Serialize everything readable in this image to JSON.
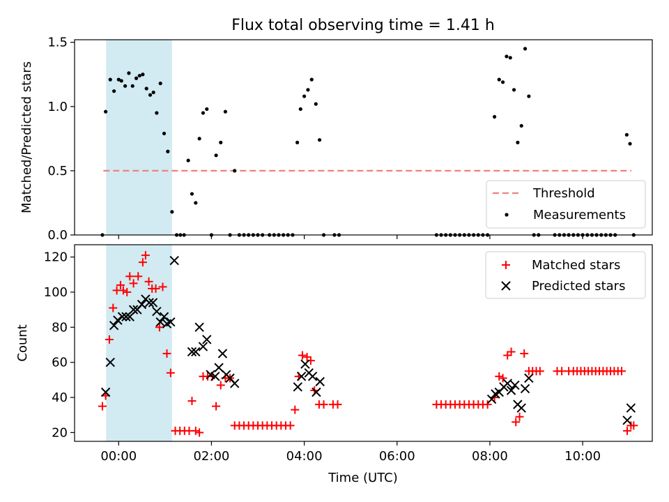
{
  "title": "Flux total observing time = 1.41 h",
  "chart_data": [
    {
      "type": "scatter",
      "ylabel": "Matched/Predicted stars",
      "xlim_hours": [
        -0.95,
        11.5
      ],
      "ylim": [
        0,
        1.52
      ],
      "yticks": [
        "0.0",
        "0.5",
        "1.0",
        "1.5"
      ],
      "highlight_span_hours": [
        -0.27,
        1.15
      ],
      "threshold": {
        "label": "Threshold",
        "value": 0.5,
        "x_range_hours": [
          -0.33,
          11.05
        ]
      },
      "legend": [
        "Threshold",
        "Measurements"
      ],
      "legend_position": "lower-right",
      "series": [
        {
          "name": "Measurements",
          "points": [
            [
              -0.35,
              0
            ],
            [
              -0.28,
              0.96
            ],
            [
              -0.18,
              1.21
            ],
            [
              -0.1,
              1.12
            ],
            [
              0,
              1.21
            ],
            [
              0.06,
              1.2
            ],
            [
              0.14,
              1.16
            ],
            [
              0.22,
              1.26
            ],
            [
              0.3,
              1.16
            ],
            [
              0.38,
              1.22
            ],
            [
              0.45,
              1.24
            ],
            [
              0.52,
              1.25
            ],
            [
              0.6,
              1.14
            ],
            [
              0.68,
              1.09
            ],
            [
              0.75,
              1.11
            ],
            [
              0.82,
              0.95
            ],
            [
              0.9,
              1.18
            ],
            [
              0.98,
              0.79
            ],
            [
              1.06,
              0.65
            ],
            [
              1.15,
              0.18
            ],
            [
              1.25,
              0
            ],
            [
              1.33,
              0
            ],
            [
              1.41,
              0
            ],
            [
              1.5,
              0.58
            ],
            [
              1.58,
              0.32
            ],
            [
              1.66,
              0.25
            ],
            [
              1.74,
              0.75
            ],
            [
              1.82,
              0.95
            ],
            [
              1.9,
              0.98
            ],
            [
              2.0,
              0
            ],
            [
              2.1,
              0.62
            ],
            [
              2.2,
              0.72
            ],
            [
              2.3,
              0.96
            ],
            [
              2.4,
              0
            ],
            [
              2.5,
              0.5
            ],
            [
              2.6,
              0
            ],
            [
              2.7,
              0
            ],
            [
              2.8,
              0
            ],
            [
              2.9,
              0
            ],
            [
              3.0,
              0
            ],
            [
              3.1,
              0
            ],
            [
              3.25,
              0
            ],
            [
              3.35,
              0
            ],
            [
              3.45,
              0
            ],
            [
              3.55,
              0
            ],
            [
              3.65,
              0
            ],
            [
              3.75,
              0
            ],
            [
              3.85,
              0.72
            ],
            [
              3.92,
              0.98
            ],
            [
              4.0,
              1.08
            ],
            [
              4.08,
              1.13
            ],
            [
              4.16,
              1.21
            ],
            [
              4.25,
              1.02
            ],
            [
              4.33,
              0.74
            ],
            [
              4.42,
              0
            ],
            [
              4.65,
              0
            ],
            [
              4.75,
              0
            ],
            [
              6.85,
              0
            ],
            [
              6.95,
              0
            ],
            [
              7.05,
              0
            ],
            [
              7.15,
              0
            ],
            [
              7.25,
              0
            ],
            [
              7.35,
              0
            ],
            [
              7.45,
              0
            ],
            [
              7.55,
              0
            ],
            [
              7.65,
              0
            ],
            [
              7.75,
              0
            ],
            [
              7.85,
              0
            ],
            [
              7.95,
              0
            ],
            [
              8.1,
              0.92
            ],
            [
              8.2,
              1.21
            ],
            [
              8.28,
              1.19
            ],
            [
              8.36,
              1.39
            ],
            [
              8.44,
              1.38
            ],
            [
              8.52,
              1.13
            ],
            [
              8.6,
              0.72
            ],
            [
              8.68,
              0.85
            ],
            [
              8.76,
              1.45
            ],
            [
              8.84,
              1.08
            ],
            [
              8.95,
              0
            ],
            [
              9.05,
              0
            ],
            [
              9.4,
              0
            ],
            [
              9.5,
              0
            ],
            [
              9.6,
              0
            ],
            [
              9.7,
              0
            ],
            [
              9.8,
              0
            ],
            [
              9.9,
              0
            ],
            [
              10.0,
              0
            ],
            [
              10.1,
              0
            ],
            [
              10.2,
              0
            ],
            [
              10.3,
              0
            ],
            [
              10.4,
              0
            ],
            [
              10.5,
              0
            ],
            [
              10.6,
              0
            ],
            [
              10.7,
              0
            ],
            [
              10.95,
              0.78
            ],
            [
              11.02,
              0.71
            ],
            [
              11.1,
              0
            ]
          ]
        }
      ]
    },
    {
      "type": "scatter",
      "xlabel": "Time (UTC)",
      "ylabel": "Count",
      "xlim_hours": [
        -0.95,
        11.5
      ],
      "ylim": [
        15,
        127
      ],
      "yticks": [
        "20",
        "40",
        "60",
        "80",
        "100",
        "120"
      ],
      "xticks": [
        "00:00",
        "02:00",
        "04:00",
        "06:00",
        "08:00",
        "10:00"
      ],
      "highlight_span_hours": [
        -0.27,
        1.15
      ],
      "legend": [
        "Matched stars",
        "Predicted stars"
      ],
      "legend_position": "upper-right",
      "series": [
        {
          "name": "Matched stars",
          "color": "#ff0000",
          "marker": "plus",
          "points": [
            [
              -0.35,
              35
            ],
            [
              -0.28,
              41
            ],
            [
              -0.2,
              73
            ],
            [
              -0.12,
              91
            ],
            [
              -0.04,
              101
            ],
            [
              0.04,
              104
            ],
            [
              0.1,
              101
            ],
            [
              0.18,
              100
            ],
            [
              0.24,
              109
            ],
            [
              0.32,
              105
            ],
            [
              0.42,
              109
            ],
            [
              0.52,
              117
            ],
            [
              0.58,
              121
            ],
            [
              0.65,
              106
            ],
            [
              0.72,
              102
            ],
            [
              0.8,
              102
            ],
            [
              0.88,
              80
            ],
            [
              0.95,
              103
            ],
            [
              1.04,
              65
            ],
            [
              1.12,
              54
            ],
            [
              1.22,
              21
            ],
            [
              1.32,
              21
            ],
            [
              1.42,
              21
            ],
            [
              1.52,
              21
            ],
            [
              1.58,
              38
            ],
            [
              1.66,
              21
            ],
            [
              1.74,
              20
            ],
            [
              1.82,
              52
            ],
            [
              1.92,
              52
            ],
            [
              2.02,
              52
            ],
            [
              2.1,
              35
            ],
            [
              2.2,
              47
            ],
            [
              2.3,
              51
            ],
            [
              2.4,
              51
            ],
            [
              2.5,
              24
            ],
            [
              2.6,
              24
            ],
            [
              2.7,
              24
            ],
            [
              2.8,
              24
            ],
            [
              2.9,
              24
            ],
            [
              3.0,
              24
            ],
            [
              3.1,
              24
            ],
            [
              3.2,
              24
            ],
            [
              3.3,
              24
            ],
            [
              3.4,
              24
            ],
            [
              3.5,
              24
            ],
            [
              3.6,
              24
            ],
            [
              3.7,
              24
            ],
            [
              3.8,
              33
            ],
            [
              3.88,
              52
            ],
            [
              3.96,
              64
            ],
            [
              4.06,
              63
            ],
            [
              4.14,
              61
            ],
            [
              4.22,
              44
            ],
            [
              4.32,
              36
            ],
            [
              4.42,
              36
            ],
            [
              4.62,
              36
            ],
            [
              4.72,
              36
            ],
            [
              6.85,
              36
            ],
            [
              6.95,
              36
            ],
            [
              7.05,
              36
            ],
            [
              7.15,
              36
            ],
            [
              7.25,
              36
            ],
            [
              7.35,
              36
            ],
            [
              7.45,
              36
            ],
            [
              7.55,
              36
            ],
            [
              7.65,
              36
            ],
            [
              7.75,
              36
            ],
            [
              7.85,
              36
            ],
            [
              7.95,
              36
            ],
            [
              8.1,
              40
            ],
            [
              8.2,
              52
            ],
            [
              8.28,
              51
            ],
            [
              8.38,
              64
            ],
            [
              8.46,
              66
            ],
            [
              8.56,
              26
            ],
            [
              8.64,
              29
            ],
            [
              8.74,
              65
            ],
            [
              8.84,
              55
            ],
            [
              8.92,
              55
            ],
            [
              9.0,
              55
            ],
            [
              9.08,
              55
            ],
            [
              9.45,
              55
            ],
            [
              9.55,
              55
            ],
            [
              9.7,
              55
            ],
            [
              9.8,
              55
            ],
            [
              9.88,
              55
            ],
            [
              9.96,
              55
            ],
            [
              10.04,
              55
            ],
            [
              10.12,
              55
            ],
            [
              10.2,
              55
            ],
            [
              10.28,
              55
            ],
            [
              10.36,
              55
            ],
            [
              10.44,
              55
            ],
            [
              10.52,
              55
            ],
            [
              10.6,
              55
            ],
            [
              10.68,
              55
            ],
            [
              10.76,
              55
            ],
            [
              10.84,
              55
            ],
            [
              10.96,
              21
            ],
            [
              11.04,
              24
            ],
            [
              11.1,
              24
            ]
          ]
        },
        {
          "name": "Predicted stars",
          "color": "#000000",
          "marker": "x",
          "points": [
            [
              -0.28,
              43
            ],
            [
              -0.18,
              60
            ],
            [
              -0.1,
              81
            ],
            [
              -0.02,
              84
            ],
            [
              0.08,
              86
            ],
            [
              0.16,
              86
            ],
            [
              0.24,
              86
            ],
            [
              0.32,
              90
            ],
            [
              0.4,
              90
            ],
            [
              0.5,
              93
            ],
            [
              0.58,
              96
            ],
            [
              0.66,
              94
            ],
            [
              0.74,
              94
            ],
            [
              0.82,
              89
            ],
            [
              0.9,
              83
            ],
            [
              0.98,
              86
            ],
            [
              1.04,
              82
            ],
            [
              1.12,
              83
            ],
            [
              1.2,
              118
            ],
            [
              1.58,
              66
            ],
            [
              1.66,
              66
            ],
            [
              1.74,
              80
            ],
            [
              1.82,
              69
            ],
            [
              1.9,
              73
            ],
            [
              1.98,
              53
            ],
            [
              2.08,
              52
            ],
            [
              2.16,
              57
            ],
            [
              2.24,
              65
            ],
            [
              2.32,
              53
            ],
            [
              2.4,
              51
            ],
            [
              2.5,
              48
            ],
            [
              3.86,
              46
            ],
            [
              3.94,
              52
            ],
            [
              4.02,
              59
            ],
            [
              4.1,
              54
            ],
            [
              4.18,
              52
            ],
            [
              4.26,
              43
            ],
            [
              4.34,
              49
            ],
            [
              8.04,
              39
            ],
            [
              8.12,
              42
            ],
            [
              8.2,
              43
            ],
            [
              8.3,
              46
            ],
            [
              8.38,
              48
            ],
            [
              8.46,
              44
            ],
            [
              8.54,
              47
            ],
            [
              8.6,
              36
            ],
            [
              8.68,
              34
            ],
            [
              8.76,
              45
            ],
            [
              8.84,
              51
            ],
            [
              10.96,
              27
            ],
            [
              11.04,
              34
            ]
          ]
        }
      ]
    }
  ]
}
